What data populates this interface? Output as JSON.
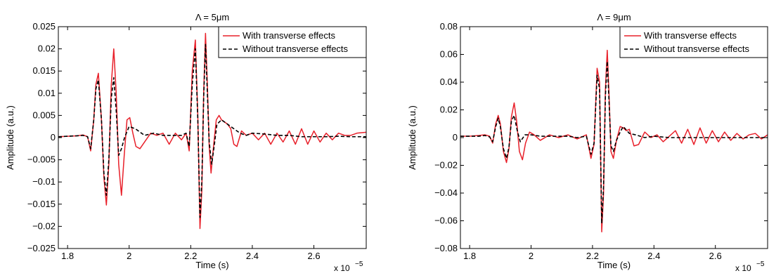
{
  "chart_data": [
    {
      "type": "line",
      "title": "Λ = 5μm",
      "xlabel": "Time (s)",
      "ylabel": "Amplitude (a.u.)",
      "x_multiplier_text": "x 10",
      "x_multiplier_exp": "−5",
      "xlim": [
        1.77,
        2.77
      ],
      "ylim": [
        -0.025,
        0.025
      ],
      "xticks": [
        1.8,
        2.0,
        2.2,
        2.4,
        2.6
      ],
      "xtick_labels": [
        "1.8",
        "2",
        "2.2",
        "2.4",
        "2.6"
      ],
      "yticks": [
        -0.025,
        -0.02,
        -0.015,
        -0.01,
        -0.005,
        0,
        0.005,
        0.01,
        0.015,
        0.02,
        0.025
      ],
      "ytick_labels": [
        "−0.025",
        "−0.02",
        "−0.015",
        "−0.01",
        "−0.005",
        "0",
        "0.005",
        "0.01",
        "0.015",
        "0.02",
        "0.025"
      ],
      "grid": false,
      "legend_position": "top-right",
      "series": [
        {
          "name": "With transverse effects",
          "color": "#e8202a",
          "style": "solid",
          "x": [
            1.77,
            1.8,
            1.83,
            1.85,
            1.865,
            1.875,
            1.885,
            1.892,
            1.9,
            1.91,
            1.918,
            1.926,
            1.934,
            1.942,
            1.95,
            1.958,
            1.966,
            1.975,
            1.984,
            1.993,
            2.002,
            2.012,
            2.022,
            2.035,
            2.05,
            2.07,
            2.09,
            2.11,
            2.13,
            2.15,
            2.17,
            2.185,
            2.195,
            2.205,
            2.215,
            2.223,
            2.23,
            2.236,
            2.242,
            2.248,
            2.254,
            2.26,
            2.266,
            2.274,
            2.283,
            2.292,
            2.3,
            2.31,
            2.32,
            2.33,
            2.34,
            2.35,
            2.365,
            2.38,
            2.4,
            2.42,
            2.44,
            2.46,
            2.48,
            2.5,
            2.52,
            2.54,
            2.56,
            2.58,
            2.6,
            2.62,
            2.64,
            2.66,
            2.68,
            2.7,
            2.72,
            2.74,
            2.77
          ],
          "y": [
            0.0002,
            0.0003,
            0.0004,
            0.0006,
            0.0002,
            -0.003,
            0.004,
            0.012,
            0.0145,
            0.004,
            -0.009,
            -0.0152,
            -0.006,
            0.012,
            0.02,
            0.01,
            -0.006,
            -0.013,
            -0.004,
            0.004,
            0.0045,
            0.001,
            -0.002,
            -0.0025,
            -0.001,
            0.001,
            0.0005,
            0.001,
            -0.0015,
            0.001,
            -0.0005,
            0.001,
            -0.003,
            0.015,
            0.022,
            0.005,
            -0.0205,
            -0.012,
            0.01,
            0.0235,
            0.012,
            -0.002,
            -0.008,
            -0.002,
            0.004,
            0.005,
            0.004,
            0.0035,
            0.003,
            0.002,
            -0.0015,
            -0.002,
            0.0015,
            0.0005,
            0.001,
            -0.0005,
            0.001,
            -0.0015,
            0.001,
            -0.001,
            0.0015,
            -0.0015,
            0.002,
            -0.0015,
            0.0015,
            -0.001,
            0.001,
            -0.0005,
            0.001,
            0.0005,
            0.0005,
            0.001,
            0.0012
          ]
        },
        {
          "name": "Without transverse effects",
          "color": "#000000",
          "style": "dashed",
          "x": [
            1.77,
            1.8,
            1.83,
            1.85,
            1.865,
            1.875,
            1.885,
            1.892,
            1.9,
            1.91,
            1.918,
            1.926,
            1.934,
            1.942,
            1.95,
            1.958,
            1.966,
            1.975,
            1.985,
            2.0,
            2.02,
            2.05,
            2.08,
            2.11,
            2.14,
            2.17,
            2.185,
            2.195,
            2.205,
            2.215,
            2.223,
            2.23,
            2.236,
            2.242,
            2.248,
            2.254,
            2.26,
            2.268,
            2.276,
            2.285,
            2.3,
            2.32,
            2.34,
            2.36,
            2.38,
            2.4,
            2.44,
            2.48,
            2.52,
            2.56,
            2.6,
            2.64,
            2.68,
            2.72,
            2.77
          ],
          "y": [
            0.0002,
            0.0003,
            0.0004,
            0.0005,
            0.0002,
            -0.0025,
            0.004,
            0.011,
            0.013,
            0.004,
            -0.008,
            -0.013,
            -0.005,
            0.009,
            0.0135,
            0.006,
            -0.004,
            -0.0025,
            0.0,
            0.0025,
            0.002,
            0.0005,
            0.001,
            0.0005,
            0.0005,
            0.0005,
            0.001,
            -0.002,
            0.012,
            0.02,
            0.004,
            -0.018,
            -0.01,
            0.009,
            0.021,
            0.01,
            -0.001,
            -0.006,
            -0.002,
            0.003,
            0.004,
            0.003,
            0.002,
            0.001,
            0.0005,
            0.001,
            0.0008,
            0.0005,
            0.0005,
            0.0002,
            0.0002,
            0.0002,
            0.0003,
            0.0002,
            0.0002
          ]
        }
      ]
    },
    {
      "type": "line",
      "title": "Λ = 9μm",
      "xlabel": "Time (s)",
      "ylabel": "Amplitude (a.u.)",
      "x_multiplier_text": "x 10",
      "x_multiplier_exp": "−5",
      "xlim": [
        1.77,
        2.77
      ],
      "ylim": [
        -0.08,
        0.08
      ],
      "xticks": [
        1.8,
        2.0,
        2.2,
        2.4,
        2.6
      ],
      "xtick_labels": [
        "1.8",
        "2",
        "2.2",
        "2.4",
        "2.6"
      ],
      "yticks": [
        -0.08,
        -0.06,
        -0.04,
        -0.02,
        0,
        0.02,
        0.04,
        0.06,
        0.08
      ],
      "ytick_labels": [
        "−0.08",
        "−0.06",
        "−0.04",
        "−0.02",
        "0",
        "0.02",
        "0.04",
        "0.06",
        "0.08"
      ],
      "grid": false,
      "legend_position": "top-right",
      "series": [
        {
          "name": "With transverse effects",
          "color": "#e8202a",
          "style": "solid",
          "x": [
            1.77,
            1.8,
            1.83,
            1.85,
            1.865,
            1.875,
            1.885,
            1.893,
            1.9,
            1.91,
            1.92,
            1.928,
            1.936,
            1.945,
            1.953,
            1.962,
            1.972,
            1.982,
            1.995,
            2.01,
            2.03,
            2.06,
            2.09,
            2.12,
            2.15,
            2.18,
            2.195,
            2.205,
            2.215,
            2.223,
            2.23,
            2.236,
            2.242,
            2.248,
            2.254,
            2.26,
            2.268,
            2.278,
            2.29,
            2.3,
            2.31,
            2.32,
            2.335,
            2.35,
            2.37,
            2.39,
            2.41,
            2.43,
            2.45,
            2.47,
            2.49,
            2.51,
            2.53,
            2.55,
            2.57,
            2.59,
            2.61,
            2.63,
            2.65,
            2.67,
            2.69,
            2.71,
            2.73,
            2.75,
            2.77
          ],
          "y": [
            0.001,
            0.001,
            0.0015,
            0.002,
            0.001,
            -0.004,
            0.01,
            0.016,
            0.01,
            -0.01,
            -0.018,
            -0.008,
            0.015,
            0.025,
            0.012,
            -0.01,
            -0.016,
            -0.004,
            0.004,
            0.002,
            -0.002,
            0.002,
            0.0,
            0.002,
            -0.001,
            0.002,
            -0.015,
            -0.005,
            0.05,
            0.04,
            -0.068,
            -0.04,
            0.035,
            0.063,
            0.03,
            -0.01,
            -0.015,
            -0.002,
            0.008,
            0.007,
            0.005,
            0.006,
            -0.006,
            -0.005,
            0.004,
            0.0,
            0.002,
            -0.003,
            0.001,
            0.005,
            -0.004,
            0.006,
            -0.005,
            0.007,
            -0.004,
            0.005,
            -0.003,
            0.004,
            -0.002,
            0.003,
            -0.001,
            0.002,
            0.003,
            -0.001,
            0.002
          ]
        },
        {
          "name": "Without transverse effects",
          "color": "#000000",
          "style": "dashed",
          "x": [
            1.77,
            1.8,
            1.83,
            1.85,
            1.865,
            1.875,
            1.885,
            1.893,
            1.9,
            1.91,
            1.92,
            1.928,
            1.936,
            1.945,
            1.955,
            1.965,
            1.98,
            2.0,
            2.03,
            2.06,
            2.09,
            2.12,
            2.15,
            2.18,
            2.195,
            2.205,
            2.215,
            2.223,
            2.23,
            2.236,
            2.242,
            2.248,
            2.254,
            2.26,
            2.268,
            2.278,
            2.29,
            2.3,
            2.32,
            2.34,
            2.37,
            2.4,
            2.45,
            2.5,
            2.55,
            2.6,
            2.65,
            2.7,
            2.77
          ],
          "y": [
            0.001,
            0.001,
            0.001,
            0.0015,
            0.0005,
            -0.003,
            0.008,
            0.014,
            0.008,
            -0.008,
            -0.015,
            -0.007,
            0.012,
            0.016,
            0.005,
            -0.003,
            0.002,
            0.002,
            0.001,
            0.001,
            0.001,
            0.001,
            0.0,
            0.001,
            -0.012,
            -0.004,
            0.045,
            0.035,
            -0.062,
            -0.035,
            0.03,
            0.055,
            0.025,
            -0.006,
            -0.01,
            -0.002,
            0.004,
            0.008,
            0.003,
            0.002,
            0.0,
            0.001,
            0.0,
            0.0,
            0.0,
            0.0,
            0.0,
            0.0,
            0.0
          ]
        }
      ]
    }
  ]
}
